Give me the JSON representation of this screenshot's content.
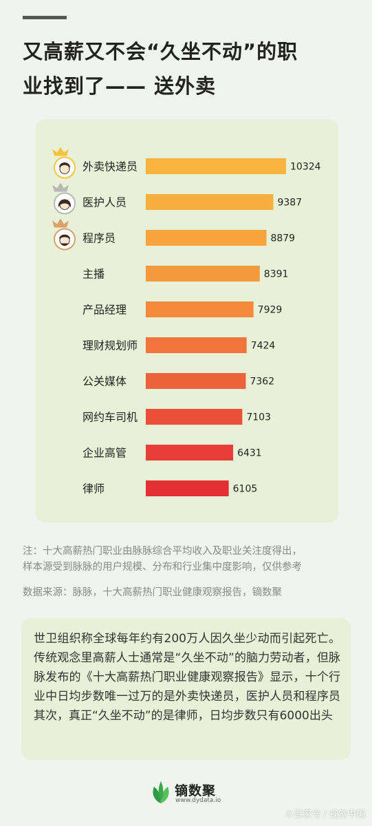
{
  "page": {
    "title_line1": "又高薪又不会“久坐不动”的职",
    "title_line2": "业找到了—— 送外卖",
    "note_line1": "注：十大高薪热门职业由脉脉综合平均收入及职业关注度得出，",
    "note_line2": "样本源受到脉脉的用户规模、分布和行业集中度影响，仅供参考",
    "source": "数据来源：脉脉，十大高薪热门职业健康观察报告，镝数聚",
    "story": "世卫组织称全球每年约有200万人因久坐少动而引起死亡。传统观念里高薪人士通常是“久坐不动”的脑力劳动者，但脉脉发布的《十大高薪热门职业健康观察报告》显示，十个行业中日均步数唯一过万的是外卖快递员，医护人员和程序员其次，真正“久坐不动”的是律师，日均步数只有6000出头",
    "brand_name": "镝数聚",
    "brand_url": "www.dydata.io",
    "watermark": "©百家号 / 视觉中国"
  },
  "chart_data": {
    "type": "bar",
    "orientation": "horizontal",
    "categories": [
      "外卖快递员",
      "医护人员",
      "程序员",
      "主播",
      "产品经理",
      "理财规划师",
      "公关媒体",
      "网约车司机",
      "企业高管",
      "律师"
    ],
    "values": [
      10324,
      9387,
      8879,
      8391,
      7929,
      7424,
      7362,
      7103,
      6431,
      6105
    ],
    "value_labels": [
      "10324",
      "9387",
      "8879",
      "8391",
      "7929",
      "7424",
      "7362",
      "7103",
      "6431",
      "6105"
    ],
    "xlim": [
      0,
      10324
    ],
    "grid": false,
    "bar_colors": [
      "#f7b33e",
      "#f7b03d",
      "#f6a43b",
      "#f59a3c",
      "#f38a3b",
      "#f0743b",
      "#ed6339",
      "#ea5038",
      "#e73f37",
      "#e33034"
    ],
    "top3_badges": [
      {
        "rank": 1,
        "crown_color": "#f5c542",
        "avatar": "boy"
      },
      {
        "rank": 2,
        "crown_color": "#b8b8b8",
        "avatar": "girl"
      },
      {
        "rank": 3,
        "crown_color": "#d9a06a",
        "avatar": "man"
      }
    ]
  },
  "colors": {
    "background": "#f0f3ee",
    "card": "#e8f0d7",
    "brand_green": "#3aa84a"
  }
}
